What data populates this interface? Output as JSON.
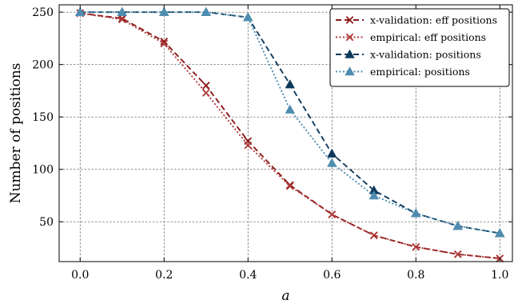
{
  "chart_data": {
    "type": "line",
    "xlabel": "a",
    "ylabel": "Number of positions",
    "xlim": [
      -0.05,
      1.03
    ],
    "ylim": [
      12,
      257
    ],
    "x_ticks": [
      0.0,
      0.2,
      0.4,
      0.6,
      0.8,
      1.0
    ],
    "x_tick_labels": [
      "0.0",
      "0.2",
      "0.4",
      "0.6",
      "0.8",
      "1.0"
    ],
    "y_ticks": [
      50,
      100,
      150,
      200,
      250
    ],
    "y_tick_labels": [
      "50",
      "100",
      "150",
      "200",
      "250"
    ],
    "grid": true,
    "legend_position": "top-right",
    "x": [
      0.0,
      0.1,
      0.2,
      0.3,
      0.4,
      0.5,
      0.6,
      0.7,
      0.8,
      0.9,
      1.0
    ],
    "series": [
      {
        "name": "x-validation: eff positions",
        "color": "#8b1a1a",
        "line_style": "dashed",
        "marker": "x",
        "values": [
          249,
          244,
          222,
          180,
          127,
          85,
          57,
          37,
          26,
          19,
          15
        ]
      },
      {
        "name": "empirical: eff positions",
        "color": "#b03a3a",
        "line_style": "dotted",
        "marker": "x",
        "values": [
          249,
          243,
          220,
          173,
          123,
          84,
          57,
          37,
          26,
          19,
          15
        ]
      },
      {
        "name": "x-validation: positions",
        "color": "#0e3a5c",
        "line_style": "dashed",
        "marker": "triangle",
        "values": [
          250,
          250,
          250,
          250,
          245,
          181,
          115,
          80,
          58,
          46,
          39
        ]
      },
      {
        "name": "empirical: positions",
        "color": "#4e8db0",
        "line_style": "dotted",
        "marker": "triangle",
        "values": [
          250,
          250,
          250,
          250,
          245,
          157,
          106,
          75,
          58,
          46,
          39
        ]
      }
    ]
  }
}
